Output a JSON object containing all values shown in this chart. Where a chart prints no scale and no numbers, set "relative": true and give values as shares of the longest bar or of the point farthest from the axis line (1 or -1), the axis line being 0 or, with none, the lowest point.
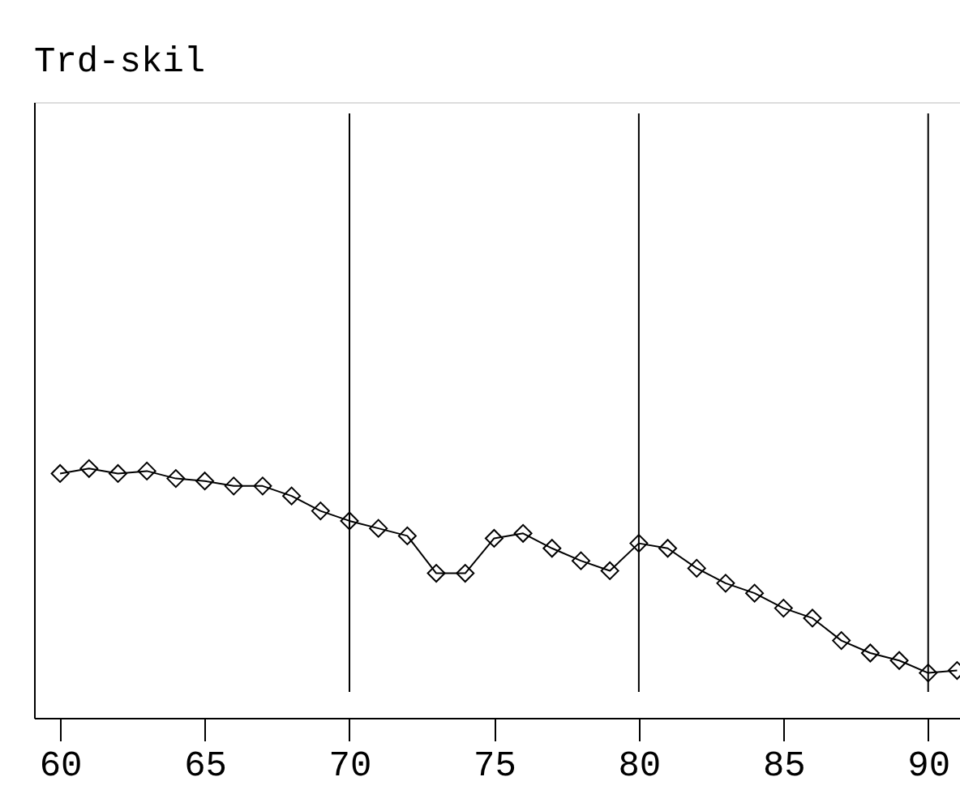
{
  "chart_data": {
    "type": "line",
    "title": "Trd-skil",
    "relative": true,
    "marker": "diamond",
    "line_style": "solid",
    "grid": false,
    "x": [
      60,
      61,
      62,
      63,
      64,
      65,
      66,
      67,
      68,
      69,
      70,
      71,
      72,
      73,
      74,
      75,
      76,
      77,
      78,
      79,
      80,
      81,
      82,
      83,
      84,
      85,
      86,
      87,
      88,
      89,
      90,
      91
    ],
    "series": [
      {
        "color": "#000000",
        "values": [
          0.98,
          1.0,
          0.98,
          0.99,
          0.96,
          0.95,
          0.93,
          0.93,
          0.89,
          0.83,
          0.79,
          0.76,
          0.73,
          0.58,
          0.58,
          0.72,
          0.74,
          0.68,
          0.63,
          0.59,
          0.7,
          0.68,
          0.6,
          0.54,
          0.5,
          0.44,
          0.4,
          0.31,
          0.26,
          0.23,
          0.18,
          0.19
        ]
      }
    ],
    "xlim": [
      59.1,
      91.1
    ],
    "xticks": [
      60,
      65,
      70,
      75,
      80,
      85,
      90
    ],
    "ref_lines": [
      {
        "axis": "x",
        "value": 70,
        "color": "#000000"
      },
      {
        "axis": "x",
        "value": 80,
        "color": "#000000"
      },
      {
        "axis": "x",
        "value": 90,
        "color": "#000000"
      }
    ]
  }
}
